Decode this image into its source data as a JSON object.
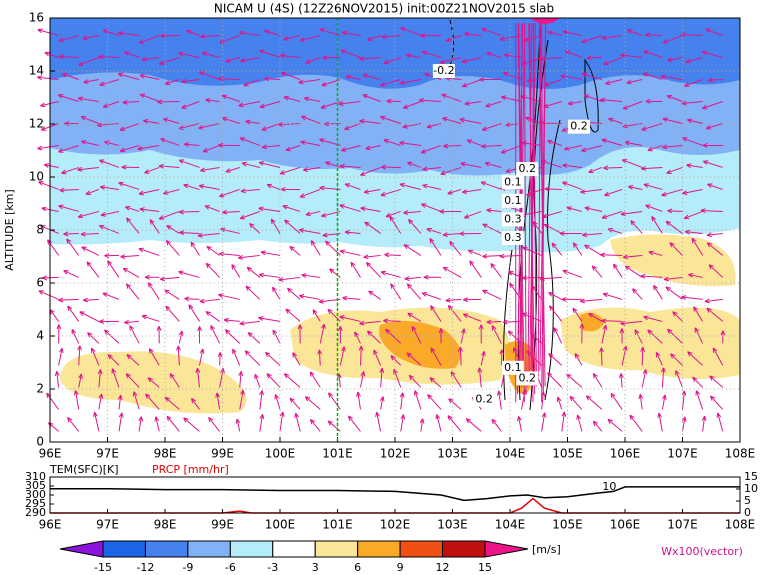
{
  "chart_data": {
    "type": "contour",
    "title": "NICAM U (4S) (12Z26NOV2015) init:00Z21NOV2015 slab",
    "ylabel": "ALTITUDE [km]",
    "xlim": [
      96,
      108
    ],
    "ylim": [
      0,
      16
    ],
    "xticks": [
      {
        "value": 96,
        "label": "96E"
      },
      {
        "value": 97,
        "label": "97E"
      },
      {
        "value": 98,
        "label": "98E"
      },
      {
        "value": 99,
        "label": "99E"
      },
      {
        "value": 100,
        "label": "100E"
      },
      {
        "value": 101,
        "label": "101E"
      },
      {
        "value": 102,
        "label": "102E"
      },
      {
        "value": 103,
        "label": "103E"
      },
      {
        "value": 104,
        "label": "104E"
      },
      {
        "value": 105,
        "label": "105E"
      },
      {
        "value": 106,
        "label": "106E"
      },
      {
        "value": 107,
        "label": "107E"
      },
      {
        "value": 108,
        "label": "108E"
      }
    ],
    "yticks": [
      0,
      2,
      4,
      6,
      8,
      10,
      12,
      14,
      16
    ],
    "grid": true,
    "reference_line": {
      "x": 101,
      "color": "#00b400"
    },
    "vector_color": "#e0148c",
    "annotations": [
      {
        "text": "-0.2",
        "x": 102.85,
        "y": 14.0
      },
      {
        "text": "0.2",
        "x": 105.2,
        "y": 11.9
      },
      {
        "text": "0.2",
        "x": 104.3,
        "y": 10.3
      },
      {
        "text": "0.1",
        "x": 104.05,
        "y": 9.8
      },
      {
        "text": "0.1",
        "x": 104.05,
        "y": 9.1
      },
      {
        "text": "0.3",
        "x": 104.05,
        "y": 8.4
      },
      {
        "text": "0.3",
        "x": 104.05,
        "y": 7.7
      },
      {
        "text": "0.1",
        "x": 104.05,
        "y": 2.8
      },
      {
        "text": "0.2",
        "x": 104.3,
        "y": 2.4
      },
      {
        "text": "0.2",
        "x": 103.55,
        "y": 1.6
      }
    ],
    "surface_panel": {
      "xlim": [
        96,
        108
      ],
      "ylim": [
        290,
        310
      ],
      "yticks": [
        290,
        295,
        300,
        305,
        310
      ],
      "y2lim": [
        0,
        15
      ],
      "y2ticks": [
        0,
        5,
        10,
        15
      ],
      "annotation": {
        "text": "10",
        "x": 105.85,
        "y": 304.5
      },
      "series": [
        {
          "name": "TEM(SFC)[K]",
          "color": "#000000",
          "x": [
            96,
            97,
            98,
            99,
            100,
            101,
            102,
            102.8,
            103.2,
            103.6,
            104,
            104.3,
            104.6,
            105,
            105.5,
            105.8,
            106,
            107,
            108
          ],
          "values": [
            303.5,
            303.5,
            303,
            303,
            302.5,
            302.5,
            302,
            300,
            297,
            298,
            299.5,
            300,
            298.5,
            299,
            301,
            302,
            304.5,
            304.5,
            304.5
          ]
        },
        {
          "name": "PRCP [mm/hr]",
          "color": "#e00000",
          "axis": "y2",
          "x": [
            96,
            99,
            99.3,
            99.5,
            104,
            104.2,
            104.4,
            104.6,
            104.9,
            108
          ],
          "values": [
            0,
            0,
            0.8,
            0,
            0,
            2,
            6,
            2,
            0,
            0
          ]
        }
      ]
    },
    "colorbar": {
      "levels": [
        -15,
        -12,
        -9,
        -6,
        -3,
        3,
        6,
        9,
        12,
        15
      ],
      "colors": [
        "#8c14dc",
        "#1e64e6",
        "#4682ee",
        "#82b2f5",
        "#b4ecfa",
        "#ffffff",
        "#fae696",
        "#faaa28",
        "#f05014",
        "#c01010",
        "#f0148c"
      ],
      "units": "[m/s]",
      "vector_label": "Wx100(vector)",
      "vector_label_color": "#c8148c"
    }
  }
}
